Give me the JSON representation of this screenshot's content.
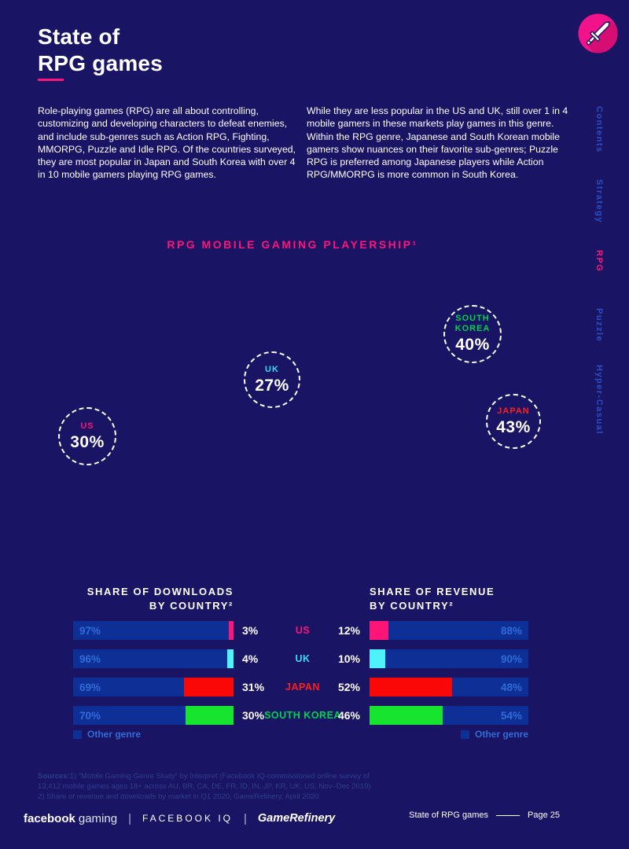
{
  "colors": {
    "background": "#1a1464",
    "accent_pink": "#ff1478",
    "icon_pink": "#f2128a",
    "bar_blue": "#0d2f96",
    "bar_label_blue": "#2f6cd8",
    "nav_blue": "#2b4fc8",
    "cyan_text": "#3fd9f4",
    "cyan_bar": "#4df2fa",
    "green_text": "#00d14e",
    "green_bar": "#17e42f",
    "red_text": "#ff1e1e",
    "red_bar": "#fa0808",
    "white": "#ffffff"
  },
  "header": {
    "title_line1": "State of",
    "title_line2": "RPG games",
    "icon": "sword-icon"
  },
  "intro": {
    "col1": "Role-playing games (RPG) are all about controlling, customizing and developing characters to defeat enemies, and include sub-genres such as Action RPG, Fighting, MMORPG, Puzzle and Idle RPG. Of the countries surveyed, they are most popular in Japan and South Korea with over 4 in 10 mobile gamers playing RPG games.",
    "col2": "While they are less popular in the US and UK, still over 1 in 4 mobile gamers in these markets play games in this genre. Within the RPG genre, Japanese and South Korean mobile gamers show nuances on their favorite sub-genres; Puzzle RPG is preferred among Japanese players while Action RPG/MMORPG is more common in South Korea."
  },
  "sidebar": {
    "items": [
      {
        "label": "Contents",
        "active": false
      },
      {
        "label": "Strategy",
        "active": false
      },
      {
        "label": "RPG",
        "active": true
      },
      {
        "label": "Puzzle",
        "active": false
      },
      {
        "label": "Hyper-Casual",
        "active": false
      }
    ]
  },
  "playership": {
    "title": "RPG MOBILE GAMING PLAYERSHIP¹",
    "bubbles": [
      {
        "country": "SOUTH KOREA",
        "value": "40%",
        "color": "#00d14e"
      },
      {
        "country": "UK",
        "value": "27%",
        "color": "#3fd9f4"
      },
      {
        "country": "JAPAN",
        "value": "43%",
        "color": "#ff1e1e"
      },
      {
        "country": "US",
        "value": "30%",
        "color": "#ff1478"
      }
    ]
  },
  "comparison": {
    "downloads_title_line1": "SHARE OF DOWNLOADS",
    "downloads_title_line2": "BY COUNTRY²",
    "revenue_title_line1": "SHARE OF REVENUE",
    "revenue_title_line2": "BY COUNTRY²",
    "legend_label": "Other genre",
    "rows": [
      {
        "country": "US",
        "country_color": "#ff1478",
        "seg_color": "#ff1478",
        "dl_other": 97,
        "dl_rpg": 3,
        "rev_rpg": 12,
        "rev_other": 88
      },
      {
        "country": "UK",
        "country_color": "#3fd9f4",
        "seg_color": "#4df2fa",
        "dl_other": 96,
        "dl_rpg": 4,
        "rev_rpg": 10,
        "rev_other": 90
      },
      {
        "country": "JAPAN",
        "country_color": "#ff1e1e",
        "seg_color": "#fa0808",
        "dl_other": 69,
        "dl_rpg": 31,
        "rev_rpg": 52,
        "rev_other": 48
      },
      {
        "country": "SOUTH KOREA",
        "country_color": "#00d14e",
        "seg_color": "#17e42f",
        "dl_other": 70,
        "dl_rpg": 30,
        "rev_rpg": 46,
        "rev_other": 54
      }
    ]
  },
  "chart_data": [
    {
      "type": "bar",
      "title": "RPG MOBILE GAMING PLAYERSHIP¹",
      "categories": [
        "SOUTH KOREA",
        "UK",
        "JAPAN",
        "US"
      ],
      "values": [
        40,
        27,
        43,
        30
      ],
      "unit": "%",
      "note": "rendered as white dashed-outline bubbles scattered on navy background"
    },
    {
      "type": "bar",
      "title": "SHARE OF DOWNLOADS BY COUNTRY²",
      "categories": [
        "US",
        "UK",
        "JAPAN",
        "SOUTH KOREA"
      ],
      "series": [
        {
          "name": "Other genre",
          "values": [
            97,
            96,
            69,
            70
          ]
        },
        {
          "name": "RPG",
          "values": [
            3,
            4,
            31,
            30
          ]
        }
      ],
      "unit": "%",
      "stacked": true,
      "legend_position": "bottom-left"
    },
    {
      "type": "bar",
      "title": "SHARE OF REVENUE BY COUNTRY²",
      "categories": [
        "US",
        "UK",
        "JAPAN",
        "SOUTH KOREA"
      ],
      "series": [
        {
          "name": "RPG",
          "values": [
            12,
            10,
            52,
            46
          ]
        },
        {
          "name": "Other genre",
          "values": [
            88,
            90,
            48,
            54
          ]
        }
      ],
      "unit": "%",
      "stacked": true,
      "legend_position": "bottom-right"
    }
  ],
  "sources": {
    "label": "Sources:",
    "line1": "1) “Mobile Gaming Genre Study” by Interpret (Facebook IQ-commissioned online survey of 13,412 mobile games ages 18+ across AU, BR, CA, DE, FR, ID, IN, JP, KR, UK, US, Nov–Dec 2019)",
    "line2": "2) Share of revenue and downloads by market in Q1 2020, GameRefinery, April 2020"
  },
  "footer": {
    "logo1_bold": "facebook",
    "logo1_light": "gaming",
    "logo2": "FACEBOOK IQ",
    "logo3": "GameRefinery",
    "page_label": "State of RPG games",
    "page_number": "Page 25"
  }
}
